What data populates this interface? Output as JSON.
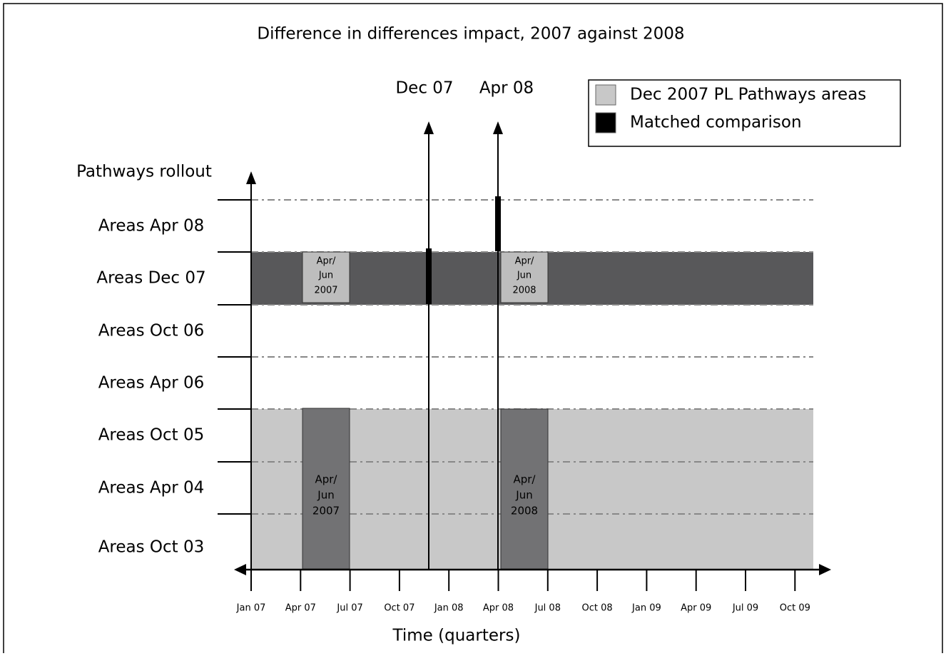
{
  "title": "Difference in differences impact, 2007 against 2008",
  "legend": [
    {
      "label": "Dec 2007 PL Pathways areas",
      "color": "#c8c8c8"
    },
    {
      "label": "Matched comparison",
      "color": "#000000"
    }
  ],
  "y_axis": {
    "label": "Pathways rollout",
    "rows": [
      "Areas Apr 08",
      "Areas Dec 07",
      "Areas Oct 06",
      "Areas Apr 06",
      "Areas Oct 05",
      "Areas Apr 04",
      "Areas Oct 03"
    ]
  },
  "x_axis": {
    "label": "Time (quarters)",
    "ticks": [
      "Jan 07",
      "Apr 07",
      "Jul 07",
      "Oct 07",
      "Jan 08",
      "Apr 08",
      "Jul 08",
      "Oct 08",
      "Jan 09",
      "Apr 09",
      "Jul 09",
      "Oct 09"
    ]
  },
  "markers": [
    "Dec 07",
    "Apr 08"
  ],
  "boxes": [
    {
      "lines": [
        "Apr/",
        "Jun",
        "2007"
      ]
    },
    {
      "lines": [
        "Apr/",
        "Jun",
        "2008"
      ]
    },
    {
      "lines": [
        "Apr/",
        "Jun",
        "2007"
      ]
    },
    {
      "lines": [
        "Apr/",
        "Jun",
        "2008"
      ]
    }
  ]
}
